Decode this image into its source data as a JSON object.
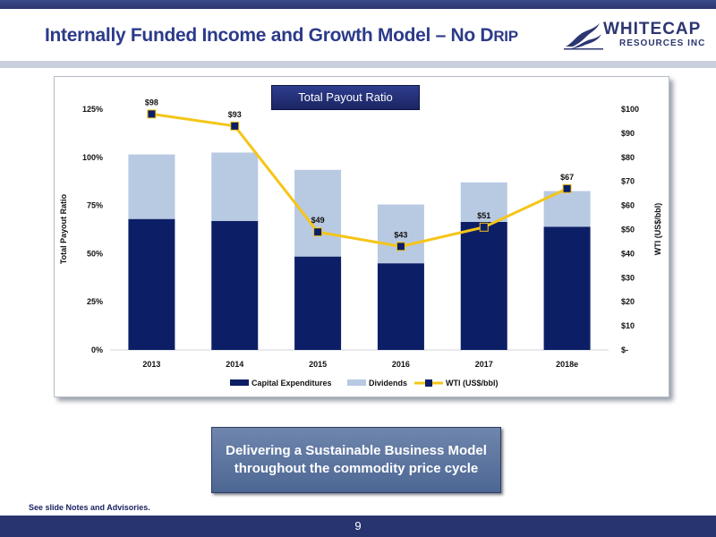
{
  "header": {
    "title_main": "Internally Funded Income and Growth Model – No D",
    "title_smallcaps": "RIP",
    "logo_word": "WHITECAP",
    "logo_sub": "RESOURCES INC"
  },
  "chart_title": "Total Payout Ratio",
  "colors": {
    "capex": "#0c1f66",
    "dividends": "#b8c9e2",
    "wti_line": "#f5c518",
    "wti_marker": "#0c1f66",
    "brand": "#2c3670"
  },
  "chart_data": {
    "type": "bar",
    "stacked": true,
    "categories": [
      "2013",
      "2014",
      "2015",
      "2016",
      "2017",
      "2018e"
    ],
    "series": [
      {
        "name": "Capital Expenditures",
        "axis": "left",
        "values": [
          68,
          67,
          48.5,
          45,
          66.5,
          64
        ]
      },
      {
        "name": "Dividends",
        "axis": "left",
        "values": [
          33.5,
          35.5,
          45,
          30.5,
          20.5,
          18.5
        ]
      },
      {
        "name": "WTI (US$/bbl)",
        "axis": "right",
        "type": "line",
        "values": [
          98,
          93,
          49,
          43,
          51,
          67
        ],
        "labels": [
          "$98",
          "$93",
          "$49",
          "$43",
          "$51",
          "$67"
        ]
      }
    ],
    "ylabel": "Total Payout Ratio",
    "y2label": "WTI (US$/bbl)",
    "ylim": [
      0,
      125
    ],
    "y2lim": [
      0,
      100
    ],
    "yticks": [
      "0%",
      "25%",
      "50%",
      "75%",
      "100%",
      "125%"
    ],
    "y2ticks": [
      "$-",
      "$10",
      "$20",
      "$30",
      "$40",
      "$50",
      "$60",
      "$70",
      "$80",
      "$90",
      "$100"
    ],
    "grid": false,
    "legend": "bottom"
  },
  "callout": {
    "line1": "Delivering a Sustainable Business Model",
    "line2": "throughout the commodity price cycle"
  },
  "notes": "See slide Notes and Advisories.",
  "page_number": "9"
}
